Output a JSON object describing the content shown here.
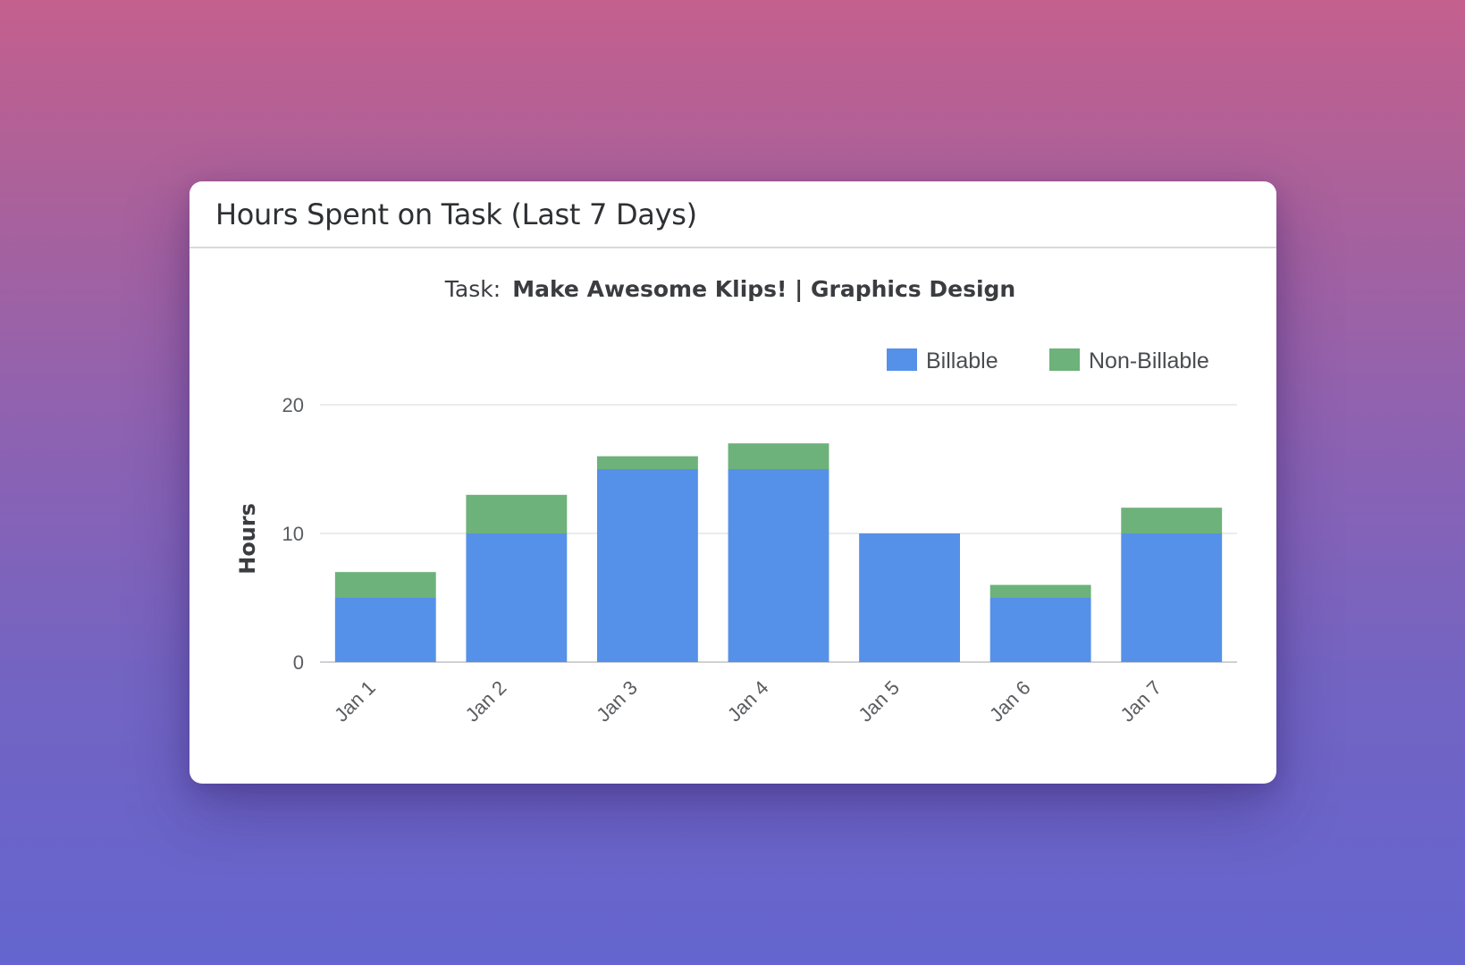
{
  "card": {
    "title": "Hours Spent on Task (Last 7 Days)"
  },
  "chart_data": {
    "type": "bar",
    "stacked": true,
    "subtitle_prefix": "Task:",
    "subtitle_task": "Make Awesome Klips! | Graphics Design",
    "categories": [
      "Jan 1",
      "Jan 2",
      "Jan 3",
      "Jan 4",
      "Jan 5",
      "Jan 6",
      "Jan 7"
    ],
    "series": [
      {
        "name": "Billable",
        "color": "#5591e8",
        "values": [
          5,
          10,
          15,
          15,
          10,
          5,
          10
        ]
      },
      {
        "name": "Non-Billable",
        "color": "#6db27a",
        "values": [
          2,
          3,
          1,
          2,
          0,
          1,
          2
        ]
      }
    ],
    "ylabel": "Hours",
    "ylim": [
      0,
      20
    ],
    "yticks": [
      0,
      10,
      20
    ],
    "grid": true,
    "legend_position": "top-right"
  }
}
